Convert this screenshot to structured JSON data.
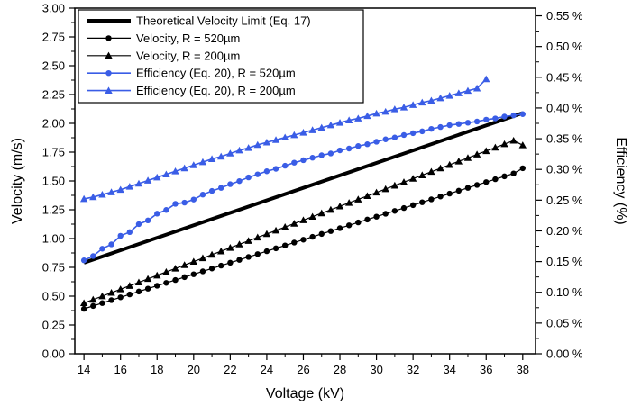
{
  "chart_data": {
    "type": "line",
    "title": "",
    "xlabel": "Voltage (kV)",
    "ylabel": "Velocity (m/s)",
    "y2label": "Efficiency (%)",
    "xlim": [
      13.5,
      38.7
    ],
    "ylim": [
      0,
      3.0
    ],
    "y2lim": [
      0,
      0.5625
    ],
    "x_ticks": [
      "14",
      "16",
      "18",
      "20",
      "22",
      "24",
      "26",
      "28",
      "30",
      "32",
      "34",
      "36",
      "38"
    ],
    "y_ticks": [
      "0.00",
      "0.25",
      "0.50",
      "0.75",
      "1.00",
      "1.25",
      "1.50",
      "1.75",
      "2.00",
      "2.25",
      "2.50",
      "2.75",
      "3.00"
    ],
    "y2_ticks": [
      "0.00 %",
      "0.05 %",
      "0.10 %",
      "0.15 %",
      "0.20 %",
      "0.25 %",
      "0.30 %",
      "0.35 %",
      "0.40 %",
      "0.45 %",
      "0.50 %",
      "0.55 %"
    ],
    "grid": false,
    "legend_position": "top-left",
    "series": [
      {
        "name": "Theoretical Velocity Limit (Eq. 17)",
        "axis": "left",
        "color": "#000000",
        "marker": "none",
        "line_width": 4,
        "x": [
          14,
          38
        ],
        "y": [
          0.79,
          2.09
        ]
      },
      {
        "name": "Velocity, R = 520µm",
        "axis": "left",
        "color": "#000000",
        "marker": "circle",
        "line_width": 1.2,
        "x": [
          14,
          14.5,
          15,
          15.5,
          16,
          16.5,
          17,
          17.5,
          18,
          18.5,
          19,
          19.5,
          20,
          20.5,
          21,
          21.5,
          22,
          22.5,
          23,
          23.5,
          24,
          24.5,
          25,
          25.5,
          26,
          26.5,
          27,
          27.5,
          28,
          28.5,
          29,
          29.5,
          30,
          30.5,
          31,
          31.5,
          32,
          32.5,
          33,
          33.5,
          34,
          34.5,
          35,
          35.5,
          36,
          36.5,
          37,
          37.5,
          38
        ],
        "y": [
          0.39,
          0.415,
          0.44,
          0.465,
          0.49,
          0.515,
          0.54,
          0.565,
          0.59,
          0.615,
          0.64,
          0.665,
          0.69,
          0.715,
          0.74,
          0.765,
          0.79,
          0.815,
          0.84,
          0.865,
          0.89,
          0.915,
          0.94,
          0.965,
          0.99,
          1.015,
          1.04,
          1.065,
          1.09,
          1.115,
          1.14,
          1.165,
          1.19,
          1.215,
          1.24,
          1.265,
          1.29,
          1.315,
          1.34,
          1.365,
          1.39,
          1.415,
          1.44,
          1.465,
          1.49,
          1.515,
          1.54,
          1.565,
          1.61
        ]
      },
      {
        "name": "Velocity, R = 200µm",
        "axis": "left",
        "color": "#000000",
        "marker": "triangle",
        "line_width": 1.2,
        "x": [
          14,
          14.5,
          15,
          15.5,
          16,
          16.5,
          17,
          17.5,
          18,
          18.5,
          19,
          19.5,
          20,
          20.5,
          21,
          21.5,
          22,
          22.5,
          23,
          23.5,
          24,
          24.5,
          25,
          25.5,
          26,
          26.5,
          27,
          27.5,
          28,
          28.5,
          29,
          29.5,
          30,
          30.5,
          31,
          31.5,
          32,
          32.5,
          33,
          33.5,
          34,
          34.5,
          35,
          35.5,
          36,
          36.5,
          37,
          37.5,
          38
        ],
        "y": [
          0.44,
          0.47,
          0.5,
          0.53,
          0.56,
          0.59,
          0.62,
          0.65,
          0.68,
          0.71,
          0.74,
          0.77,
          0.8,
          0.83,
          0.86,
          0.89,
          0.92,
          0.95,
          0.98,
          1.01,
          1.04,
          1.07,
          1.1,
          1.13,
          1.16,
          1.19,
          1.22,
          1.25,
          1.28,
          1.31,
          1.34,
          1.37,
          1.4,
          1.43,
          1.46,
          1.49,
          1.52,
          1.55,
          1.58,
          1.61,
          1.64,
          1.67,
          1.7,
          1.73,
          1.76,
          1.79,
          1.82,
          1.85,
          1.81
        ]
      },
      {
        "name": "Efficiency (Eq. 20), R = 520µm",
        "axis": "right",
        "color": "#3a5de6",
        "marker": "circle",
        "line_width": 1.6,
        "x": [
          14,
          14.5,
          15,
          15.5,
          16,
          16.5,
          17,
          17.5,
          18,
          18.5,
          19,
          19.5,
          20,
          20.5,
          21,
          21.5,
          22,
          22.5,
          23,
          23.5,
          24,
          24.5,
          25,
          25.5,
          26,
          26.5,
          27,
          27.5,
          28,
          28.5,
          29,
          29.5,
          30,
          30.5,
          31,
          31.5,
          32,
          32.5,
          33,
          33.5,
          34,
          34.5,
          35,
          35.5,
          36,
          36.5,
          37,
          37.5,
          38
        ],
        "y": [
          0.152,
          0.159,
          0.171,
          0.178,
          0.192,
          0.198,
          0.211,
          0.217,
          0.228,
          0.234,
          0.244,
          0.246,
          0.251,
          0.259,
          0.265,
          0.27,
          0.276,
          0.281,
          0.287,
          0.292,
          0.297,
          0.301,
          0.306,
          0.311,
          0.315,
          0.319,
          0.323,
          0.326,
          0.331,
          0.334,
          0.338,
          0.341,
          0.345,
          0.349,
          0.352,
          0.356,
          0.359,
          0.362,
          0.366,
          0.369,
          0.372,
          0.374,
          0.376,
          0.378,
          0.381,
          0.383,
          0.386,
          0.388,
          0.39
        ]
      },
      {
        "name": "Efficiency (Eq. 20), R = 200µm",
        "axis": "right",
        "color": "#3a5de6",
        "marker": "triangle",
        "line_width": 1.6,
        "x": [
          14,
          14.5,
          15,
          15.5,
          16,
          16.5,
          17,
          17.5,
          18,
          18.5,
          19,
          19.5,
          20,
          20.5,
          21,
          21.5,
          22,
          22.5,
          23,
          23.5,
          24,
          24.5,
          25,
          25.5,
          26,
          26.5,
          27,
          27.5,
          28,
          28.5,
          29,
          29.5,
          30,
          30.5,
          31,
          31.5,
          32,
          32.5,
          33,
          33.5,
          34,
          34.5,
          35,
          35.5,
          36
        ],
        "y": [
          0.252,
          0.255,
          0.259,
          0.263,
          0.267,
          0.272,
          0.277,
          0.282,
          0.287,
          0.292,
          0.297,
          0.302,
          0.307,
          0.312,
          0.317,
          0.321,
          0.326,
          0.331,
          0.335,
          0.34,
          0.344,
          0.348,
          0.352,
          0.356,
          0.36,
          0.364,
          0.368,
          0.372,
          0.376,
          0.38,
          0.383,
          0.387,
          0.391,
          0.394,
          0.398,
          0.401,
          0.405,
          0.409,
          0.412,
          0.416,
          0.42,
          0.424,
          0.428,
          0.432,
          0.447
        ]
      }
    ]
  }
}
